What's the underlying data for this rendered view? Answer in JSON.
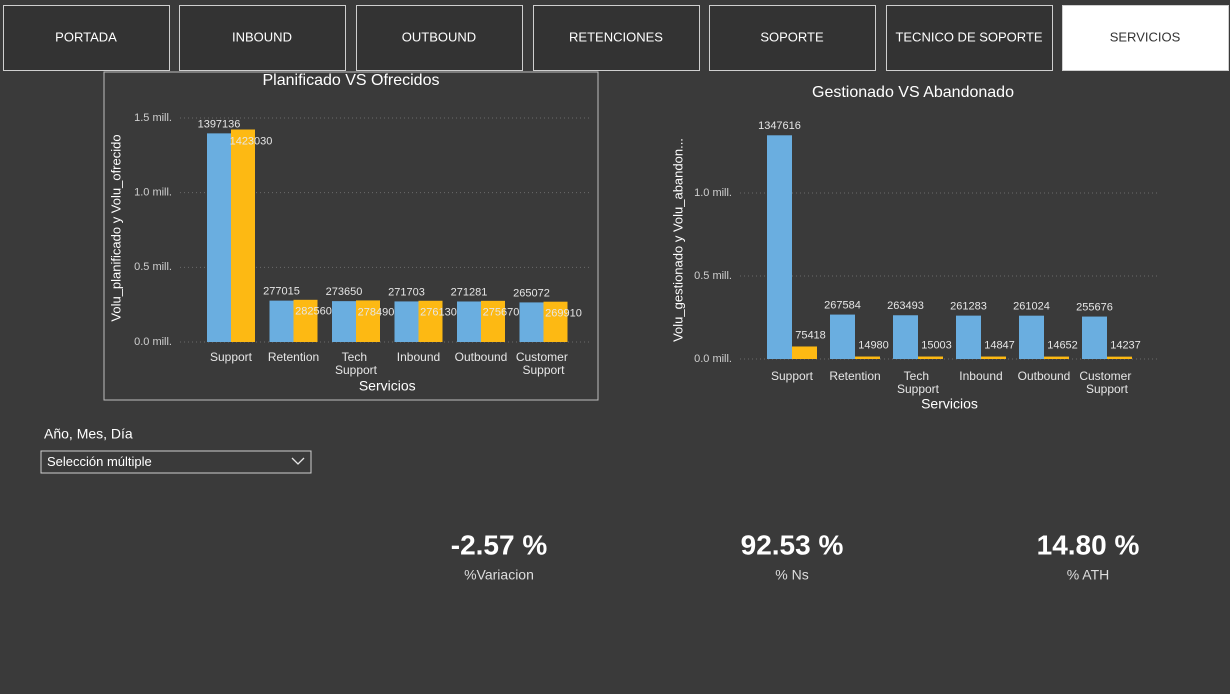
{
  "tabs": [
    "PORTADA",
    "INBOUND",
    "OUTBOUND",
    "RETENCIONES",
    "SOPORTE",
    "TECNICO DE SOPORTE",
    "SERVICIOS"
  ],
  "active_tab": 6,
  "chart_data": [
    {
      "type": "bar",
      "title": "Planificado VS Ofrecidos",
      "y_label": "Volu_planificado y Volu_ofrecido",
      "x_label": "Servicios",
      "categories": [
        "Support",
        "Retention",
        "Tech Support",
        "Inbound",
        "Outbound",
        "Customer Support"
      ],
      "series": [
        {
          "color": "#6aaee0",
          "values": [
            1397136,
            277015,
            273650,
            271703,
            271281,
            265072
          ]
        },
        {
          "color": "#fdb913",
          "values": [
            1423030,
            282560,
            278490,
            276130,
            275670,
            269910
          ]
        }
      ],
      "ylim": [
        0,
        1500000
      ],
      "yticks": [
        {
          "value": 0,
          "label": "0.0 mill."
        },
        {
          "value": 500000,
          "label": "0.5 mill."
        },
        {
          "value": 1000000,
          "label": "1.0 mill."
        },
        {
          "value": 1500000,
          "label": "1.5 mill."
        }
      ],
      "grid": true
    },
    {
      "type": "bar",
      "title": "Gestionado VS Abandonado",
      "y_label": "Volu_gestionado y Volu_abandon...",
      "x_label": "Servicios",
      "categories": [
        "Support",
        "Retention",
        "Tech Support",
        "Inbound",
        "Outbound",
        "Customer Support"
      ],
      "series": [
        {
          "color": "#6aaee0",
          "values": [
            1347616,
            267584,
            263493,
            261283,
            261024,
            255676
          ]
        },
        {
          "color": "#fdb913",
          "values": [
            75418,
            14980,
            15003,
            14847,
            14652,
            14237
          ]
        }
      ],
      "ylim": [
        0,
        1400000
      ],
      "yticks": [
        {
          "value": 0,
          "label": "0.0 mill."
        },
        {
          "value": 500000,
          "label": "0.5 mill."
        },
        {
          "value": 1000000,
          "label": "1.0 mill."
        }
      ],
      "grid": true
    }
  ],
  "slicer": {
    "label": "Año, Mes, Día",
    "value": "Selección múltiple"
  },
  "cards": [
    {
      "value": "-2.57 %",
      "label": "%Variacion"
    },
    {
      "value": "92.53 %",
      "label": "% Ns"
    },
    {
      "value": "14.80 %",
      "label": "% ATH"
    }
  ]
}
